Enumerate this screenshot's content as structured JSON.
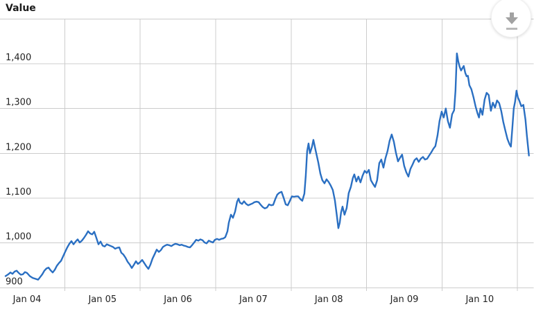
{
  "title": "Value",
  "icons": {
    "download": "download-arrow"
  },
  "colors": {
    "line": "#2a6fc2",
    "grid": "#cccccc",
    "label": "#222222",
    "icon_gray": "#a2a2a2",
    "icon_gray_light": "#b8b8b8"
  },
  "chart_data": {
    "type": "line",
    "title": "Value",
    "legend": "none",
    "grid": true,
    "xlim": [
      2003.64,
      2010.72
    ],
    "ylim": [
      893,
      1507
    ],
    "x_axis": {
      "ticks": [
        2004,
        2005,
        2006,
        2007,
        2008,
        2009,
        2010
      ],
      "labels": [
        "Jan 04",
        "Jan 05",
        "Jan 06",
        "Jan 07",
        "Jan 08",
        "Jan 09",
        "Jan 10"
      ]
    },
    "y_axis": {
      "ticks": [
        900,
        1000,
        1100,
        1200,
        1300,
        1400
      ],
      "labels": [
        "900",
        "1,000",
        "1,100",
        "1,200",
        "1,300",
        "1,400"
      ]
    },
    "gridlines": {
      "vertical_years": [
        2004.5,
        2005.5,
        2006.5,
        2007.5,
        2008.5,
        2009.5,
        2010.5
      ],
      "horizontal_values": [
        900,
        1000,
        1100,
        1200,
        1300,
        1400,
        1500
      ]
    },
    "points": [
      [
        2003.715,
        926
      ],
      [
        2003.752,
        930
      ],
      [
        2003.779,
        934
      ],
      [
        2003.807,
        931
      ],
      [
        2003.835,
        936
      ],
      [
        2003.862,
        938
      ],
      [
        2003.89,
        933
      ],
      [
        2003.917,
        929
      ],
      [
        2003.945,
        930
      ],
      [
        2003.972,
        935
      ],
      [
        2004.0,
        933
      ],
      [
        2004.037,
        926
      ],
      [
        2004.074,
        922
      ],
      [
        2004.11,
        920
      ],
      [
        2004.147,
        918
      ],
      [
        2004.175,
        924
      ],
      [
        2004.202,
        930
      ],
      [
        2004.23,
        938
      ],
      [
        2004.257,
        943
      ],
      [
        2004.285,
        945
      ],
      [
        2004.312,
        939
      ],
      [
        2004.34,
        934
      ],
      [
        2004.368,
        940
      ],
      [
        2004.395,
        949
      ],
      [
        2004.423,
        955
      ],
      [
        2004.45,
        960
      ],
      [
        2004.478,
        970
      ],
      [
        2004.505,
        980
      ],
      [
        2004.533,
        990
      ],
      [
        2004.561,
        998
      ],
      [
        2004.588,
        1004
      ],
      [
        2004.616,
        997
      ],
      [
        2004.643,
        1003
      ],
      [
        2004.671,
        1008
      ],
      [
        2004.698,
        1001
      ],
      [
        2004.726,
        1005
      ],
      [
        2004.754,
        1011
      ],
      [
        2004.781,
        1018
      ],
      [
        2004.809,
        1026
      ],
      [
        2004.836,
        1021
      ],
      [
        2004.864,
        1019
      ],
      [
        2004.891,
        1025
      ],
      [
        2004.919,
        1011
      ],
      [
        2004.947,
        997
      ],
      [
        2004.974,
        1003
      ],
      [
        2005.002,
        994
      ],
      [
        2005.029,
        992
      ],
      [
        2005.057,
        997
      ],
      [
        2005.084,
        995
      ],
      [
        2005.112,
        993
      ],
      [
        2005.14,
        991
      ],
      [
        2005.167,
        987
      ],
      [
        2005.195,
        989
      ],
      [
        2005.222,
        990
      ],
      [
        2005.25,
        978
      ],
      [
        2005.277,
        974
      ],
      [
        2005.305,
        967
      ],
      [
        2005.333,
        958
      ],
      [
        2005.36,
        952
      ],
      [
        2005.388,
        944
      ],
      [
        2005.415,
        951
      ],
      [
        2005.443,
        959
      ],
      [
        2005.47,
        953
      ],
      [
        2005.498,
        957
      ],
      [
        2005.526,
        962
      ],
      [
        2005.553,
        955
      ],
      [
        2005.581,
        948
      ],
      [
        2005.608,
        942
      ],
      [
        2005.636,
        952
      ],
      [
        2005.663,
        965
      ],
      [
        2005.691,
        975
      ],
      [
        2005.719,
        985
      ],
      [
        2005.746,
        980
      ],
      [
        2005.774,
        984
      ],
      [
        2005.801,
        991
      ],
      [
        2005.829,
        994
      ],
      [
        2005.856,
        996
      ],
      [
        2005.884,
        995
      ],
      [
        2005.912,
        993
      ],
      [
        2005.939,
        996
      ],
      [
        2005.967,
        998
      ],
      [
        2005.994,
        997
      ],
      [
        2006.022,
        995
      ],
      [
        2006.049,
        996
      ],
      [
        2006.077,
        994
      ],
      [
        2006.104,
        993
      ],
      [
        2006.132,
        991
      ],
      [
        2006.16,
        990
      ],
      [
        2006.187,
        995
      ],
      [
        2006.215,
        1001
      ],
      [
        2006.242,
        1007
      ],
      [
        2006.27,
        1005
      ],
      [
        2006.297,
        1008
      ],
      [
        2006.325,
        1006
      ],
      [
        2006.353,
        1001
      ],
      [
        2006.38,
        999
      ],
      [
        2006.408,
        1005
      ],
      [
        2006.435,
        1003
      ],
      [
        2006.463,
        1001
      ],
      [
        2006.49,
        1007
      ],
      [
        2006.518,
        1009
      ],
      [
        2006.546,
        1007
      ],
      [
        2006.573,
        1009
      ],
      [
        2006.601,
        1010
      ],
      [
        2006.628,
        1013
      ],
      [
        2006.656,
        1026
      ],
      [
        2006.674,
        1045
      ],
      [
        2006.702,
        1063
      ],
      [
        2006.729,
        1056
      ],
      [
        2006.757,
        1070
      ],
      [
        2006.784,
        1092
      ],
      [
        2006.803,
        1099
      ],
      [
        2006.821,
        1090
      ],
      [
        2006.849,
        1087
      ],
      [
        2006.876,
        1093
      ],
      [
        2006.904,
        1087
      ],
      [
        2006.932,
        1084
      ],
      [
        2006.959,
        1086
      ],
      [
        2006.987,
        1088
      ],
      [
        2007.014,
        1091
      ],
      [
        2007.042,
        1092
      ],
      [
        2007.069,
        1091
      ],
      [
        2007.097,
        1085
      ],
      [
        2007.124,
        1080
      ],
      [
        2007.152,
        1077
      ],
      [
        2007.18,
        1079
      ],
      [
        2007.207,
        1086
      ],
      [
        2007.235,
        1084
      ],
      [
        2007.262,
        1085
      ],
      [
        2007.29,
        1098
      ],
      [
        2007.317,
        1108
      ],
      [
        2007.345,
        1112
      ],
      [
        2007.373,
        1114
      ],
      [
        2007.4,
        1101
      ],
      [
        2007.428,
        1086
      ],
      [
        2007.455,
        1084
      ],
      [
        2007.483,
        1094
      ],
      [
        2007.51,
        1104
      ],
      [
        2007.538,
        1103
      ],
      [
        2007.566,
        1104
      ],
      [
        2007.593,
        1104
      ],
      [
        2007.621,
        1098
      ],
      [
        2007.648,
        1094
      ],
      [
        2007.676,
        1110
      ],
      [
        2007.694,
        1150
      ],
      [
        2007.712,
        1205
      ],
      [
        2007.731,
        1222
      ],
      [
        2007.749,
        1200
      ],
      [
        2007.777,
        1215
      ],
      [
        2007.795,
        1230
      ],
      [
        2007.823,
        1208
      ],
      [
        2007.859,
        1180
      ],
      [
        2007.887,
        1155
      ],
      [
        2007.914,
        1140
      ],
      [
        2007.942,
        1133
      ],
      [
        2007.97,
        1142
      ],
      [
        2007.997,
        1136
      ],
      [
        2008.025,
        1128
      ],
      [
        2008.052,
        1118
      ],
      [
        2008.08,
        1095
      ],
      [
        2008.107,
        1060
      ],
      [
        2008.126,
        1033
      ],
      [
        2008.144,
        1045
      ],
      [
        2008.162,
        1068
      ],
      [
        2008.181,
        1081
      ],
      [
        2008.208,
        1063
      ],
      [
        2008.236,
        1078
      ],
      [
        2008.263,
        1111
      ],
      [
        2008.291,
        1125
      ],
      [
        2008.318,
        1145
      ],
      [
        2008.337,
        1153
      ],
      [
        2008.364,
        1137
      ],
      [
        2008.392,
        1148
      ],
      [
        2008.419,
        1135
      ],
      [
        2008.447,
        1150
      ],
      [
        2008.475,
        1161
      ],
      [
        2008.502,
        1156
      ],
      [
        2008.53,
        1163
      ],
      [
        2008.557,
        1140
      ],
      [
        2008.585,
        1132
      ],
      [
        2008.612,
        1125
      ],
      [
        2008.64,
        1140
      ],
      [
        2008.668,
        1178
      ],
      [
        2008.695,
        1186
      ],
      [
        2008.723,
        1168
      ],
      [
        2008.75,
        1189
      ],
      [
        2008.778,
        1205
      ],
      [
        2008.805,
        1228
      ],
      [
        2008.833,
        1242
      ],
      [
        2008.861,
        1226
      ],
      [
        2008.888,
        1202
      ],
      [
        2008.916,
        1182
      ],
      [
        2008.943,
        1190
      ],
      [
        2008.971,
        1197
      ],
      [
        2008.998,
        1172
      ],
      [
        2009.026,
        1158
      ],
      [
        2009.054,
        1148
      ],
      [
        2009.081,
        1165
      ],
      [
        2009.109,
        1175
      ],
      [
        2009.136,
        1185
      ],
      [
        2009.164,
        1189
      ],
      [
        2009.191,
        1181
      ],
      [
        2009.219,
        1188
      ],
      [
        2009.247,
        1192
      ],
      [
        2009.274,
        1186
      ],
      [
        2009.302,
        1188
      ],
      [
        2009.329,
        1195
      ],
      [
        2009.357,
        1202
      ],
      [
        2009.384,
        1210
      ],
      [
        2009.412,
        1216
      ],
      [
        2009.44,
        1240
      ],
      [
        2009.467,
        1272
      ],
      [
        2009.495,
        1293
      ],
      [
        2009.522,
        1280
      ],
      [
        2009.55,
        1300
      ],
      [
        2009.577,
        1272
      ],
      [
        2009.605,
        1257
      ],
      [
        2009.633,
        1287
      ],
      [
        2009.66,
        1296
      ],
      [
        2009.678,
        1340
      ],
      [
        2009.697,
        1423
      ],
      [
        2009.715,
        1405
      ],
      [
        2009.733,
        1393
      ],
      [
        2009.752,
        1385
      ],
      [
        2009.77,
        1390
      ],
      [
        2009.788,
        1395
      ],
      [
        2009.807,
        1380
      ],
      [
        2009.825,
        1372
      ],
      [
        2009.843,
        1373
      ],
      [
        2009.862,
        1352
      ],
      [
        2009.889,
        1343
      ],
      [
        2009.917,
        1325
      ],
      [
        2009.944,
        1305
      ],
      [
        2009.972,
        1288
      ],
      [
        2009.99,
        1280
      ],
      [
        2010.009,
        1300
      ],
      [
        2010.036,
        1286
      ],
      [
        2010.064,
        1320
      ],
      [
        2010.091,
        1335
      ],
      [
        2010.119,
        1330
      ],
      [
        2010.147,
        1295
      ],
      [
        2010.174,
        1313
      ],
      [
        2010.202,
        1302
      ],
      [
        2010.229,
        1318
      ],
      [
        2010.257,
        1312
      ],
      [
        2010.284,
        1295
      ],
      [
        2010.312,
        1270
      ],
      [
        2010.34,
        1250
      ],
      [
        2010.367,
        1232
      ],
      [
        2010.395,
        1220
      ],
      [
        2010.413,
        1215
      ],
      [
        2010.431,
        1255
      ],
      [
        2010.45,
        1300
      ],
      [
        2010.468,
        1315
      ],
      [
        2010.487,
        1340
      ],
      [
        2010.505,
        1325
      ],
      [
        2010.523,
        1318
      ],
      [
        2010.551,
        1305
      ],
      [
        2010.578,
        1308
      ],
      [
        2010.606,
        1275
      ],
      [
        2010.624,
        1240
      ],
      [
        2010.652,
        1195
      ]
    ]
  }
}
